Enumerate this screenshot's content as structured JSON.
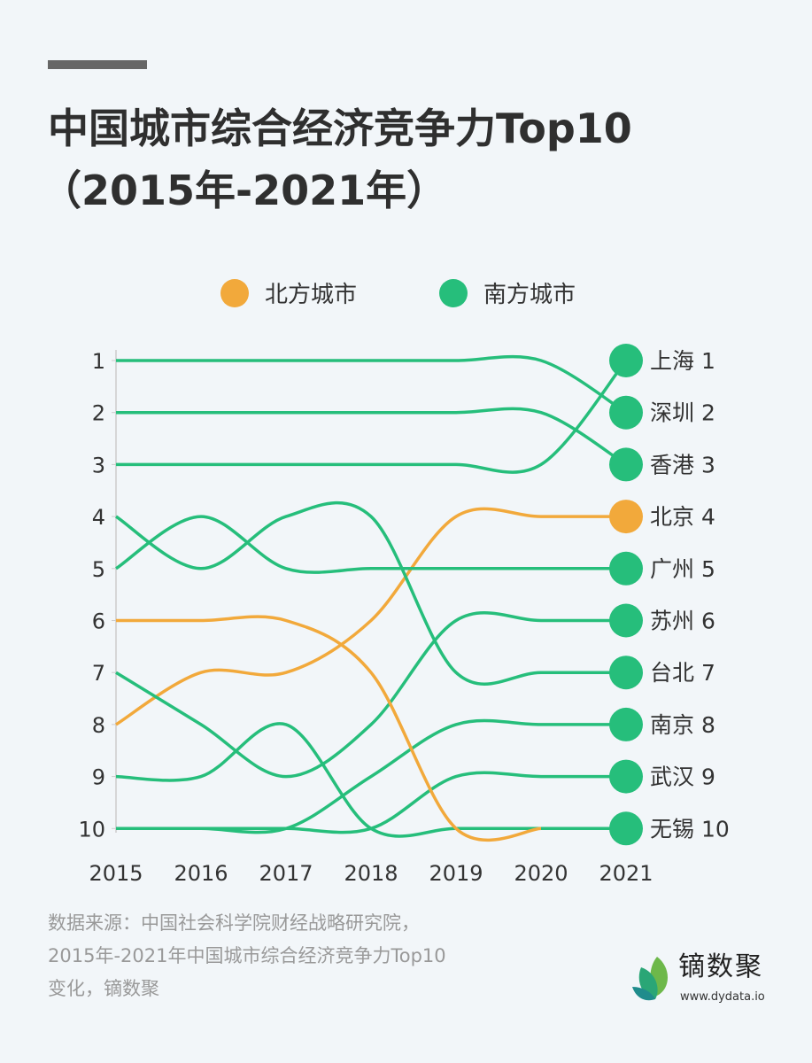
{
  "title_line1": "中国城市综合经济竞争力Top10",
  "title_line2": "（2015年-2021年）",
  "legend": [
    {
      "label": "北方城市",
      "color": "#F2A93B"
    },
    {
      "label": "南方城市",
      "color": "#26BE7B"
    }
  ],
  "source_lines": [
    "数据来源：中国社会科学院财经战略研究院，",
    "2015年-2021年中国城市综合经济竞争力Top10",
    "变化，镝数聚"
  ],
  "logo": {
    "name": "镝数聚",
    "url": "www.dydata.io"
  },
  "chart_data": {
    "type": "line",
    "subtype": "bump",
    "x": [
      "2015",
      "2016",
      "2017",
      "2018",
      "2019",
      "2020",
      "2021"
    ],
    "y_ticks": [
      "1",
      "2",
      "3",
      "4",
      "5",
      "6",
      "7",
      "8",
      "9",
      "10"
    ],
    "ylim": [
      1,
      10
    ],
    "y_inverted": true,
    "grid": false,
    "legend_position": "top-center",
    "series": [
      {
        "name": "上海",
        "label": "上海 1",
        "group": "南方城市",
        "values": [
          3,
          3,
          3,
          3,
          3,
          3,
          1
        ]
      },
      {
        "name": "深圳",
        "label": "深圳 2",
        "group": "南方城市",
        "values": [
          1,
          1,
          1,
          1,
          1,
          1,
          2
        ]
      },
      {
        "name": "香港",
        "label": "香港 3",
        "group": "南方城市",
        "values": [
          2,
          2,
          2,
          2,
          2,
          2,
          3
        ]
      },
      {
        "name": "北京",
        "label": "北京 4",
        "group": "北方城市",
        "values": [
          8,
          7,
          7,
          6,
          4,
          4,
          4
        ]
      },
      {
        "name": "广州",
        "label": "广州 5",
        "group": "南方城市",
        "values": [
          5,
          4,
          5,
          5,
          5,
          5,
          5
        ]
      },
      {
        "name": "苏州",
        "label": "苏州 6",
        "group": "南方城市",
        "values": [
          7,
          8,
          9,
          8,
          6,
          6,
          6
        ]
      },
      {
        "name": "台北",
        "label": "台北 7",
        "group": "南方城市",
        "values": [
          4,
          5,
          4,
          4,
          7,
          7,
          7
        ]
      },
      {
        "name": "南京",
        "label": "南京 8",
        "group": "南方城市",
        "values": [
          10,
          10,
          10,
          9,
          8,
          8,
          8
        ]
      },
      {
        "name": "武汉",
        "label": "武汉 9",
        "group": "南方城市",
        "values": [
          null,
          10,
          10,
          10,
          9,
          9,
          9
        ]
      },
      {
        "name": "无锡",
        "label": "无锡 10",
        "group": "南方城市",
        "values": [
          9,
          9,
          8,
          10,
          10,
          10,
          10
        ]
      },
      {
        "group": "北方城市",
        "values": [
          6,
          6,
          6,
          7,
          10,
          10,
          null
        ]
      }
    ]
  }
}
